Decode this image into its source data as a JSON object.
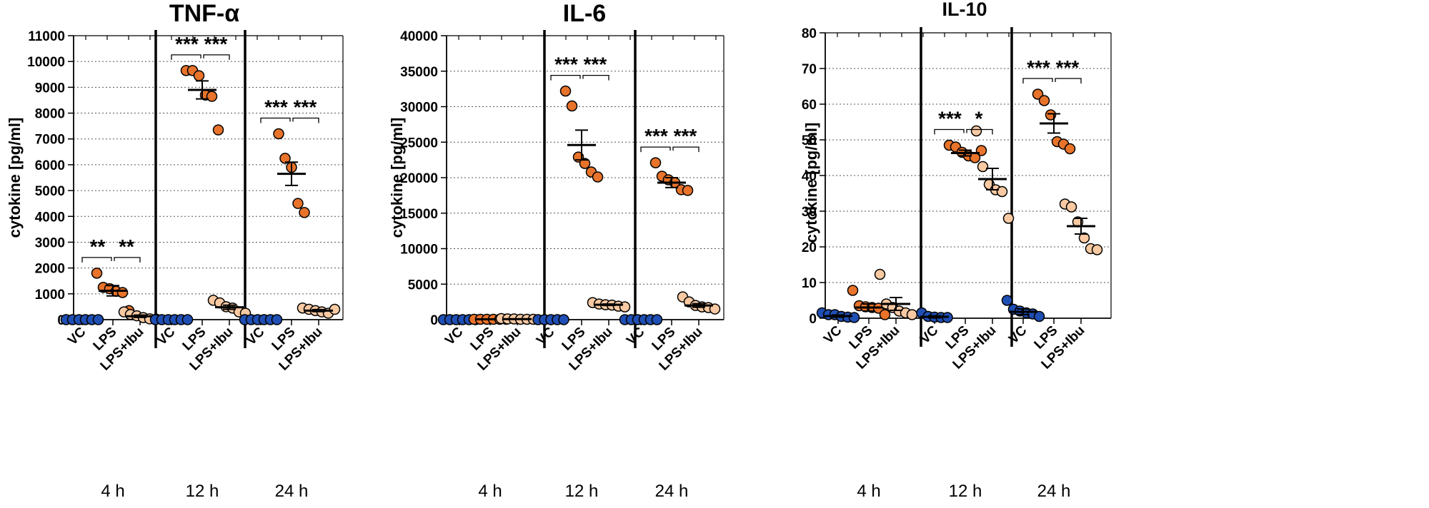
{
  "colors": {
    "VC": "#1f4fb4",
    "LPS": "#e8732a",
    "LPS+Ibu": "#f8c9a2",
    "outline": "#000000"
  },
  "chart_data": [
    {
      "type": "scatter",
      "title": "TNF-α",
      "ylabel": "cytokine [pg/ml]",
      "ylim": [
        0,
        11000
      ],
      "yticks": [
        0,
        1000,
        2000,
        3000,
        4000,
        5000,
        6000,
        7000,
        8000,
        9000,
        10000,
        11000
      ],
      "grid": true,
      "groups": [
        {
          "label": "4 h",
          "treatments": [
            {
              "name": "VC",
              "values": [
                0,
                0,
                0,
                0,
                0,
                0
              ],
              "mean": 0,
              "sem": 0
            },
            {
              "name": "LPS",
              "values": [
                1800,
                1250,
                1200,
                1100,
                1050,
                350
              ],
              "mean": 1120,
              "sem": 200
            },
            {
              "name": "LPS+Ibu",
              "values": [
                300,
                200,
                150,
                80,
                30,
                20
              ],
              "mean": 130,
              "sem": 45
            }
          ],
          "significance": [
            "**",
            "**"
          ]
        },
        {
          "label": "12 h",
          "treatments": [
            {
              "name": "VC",
              "values": [
                0,
                0,
                0,
                0,
                0,
                0
              ],
              "mean": 0,
              "sem": 0
            },
            {
              "name": "LPS",
              "values": [
                9650,
                9650,
                9450,
                8700,
                8650,
                7350
              ],
              "mean": 8900,
              "sem": 350
            },
            {
              "name": "LPS+Ibu",
              "values": [
                750,
                650,
                500,
                450,
                300,
                250
              ],
              "mean": 480,
              "sem": 80
            }
          ],
          "significance": [
            "***",
            "***"
          ]
        },
        {
          "label": "24 h",
          "treatments": [
            {
              "name": "VC",
              "values": [
                0,
                0,
                0,
                0,
                0,
                0
              ],
              "mean": 0,
              "sem": 0
            },
            {
              "name": "LPS",
              "values": [
                7200,
                6250,
                5900,
                4500,
                4150
              ],
              "mean": 5650,
              "sem": 450
            },
            {
              "name": "LPS+Ibu",
              "values": [
                450,
                400,
                350,
                300,
                250,
                400
              ],
              "mean": 350,
              "sem": 40
            }
          ],
          "significance": [
            "***",
            "***"
          ]
        }
      ]
    },
    {
      "type": "scatter",
      "title": "IL-6",
      "ylabel": "cytokine [pg/ml]",
      "ylim": [
        0,
        40000
      ],
      "yticks": [
        0,
        5000,
        10000,
        15000,
        20000,
        25000,
        30000,
        35000,
        40000
      ],
      "grid": true,
      "groups": [
        {
          "label": "4 h",
          "treatments": [
            {
              "name": "VC",
              "values": [
                0,
                0,
                0,
                0,
                0,
                0
              ],
              "mean": 0,
              "sem": 0
            },
            {
              "name": "LPS",
              "values": [
                50,
                50,
                50,
                50,
                50,
                50
              ],
              "mean": 50,
              "sem": 0
            },
            {
              "name": "LPS+Ibu",
              "values": [
                150,
                100,
                100,
                50,
                50,
                50
              ],
              "mean": 80,
              "sem": 20
            }
          ],
          "significance": []
        },
        {
          "label": "12 h",
          "treatments": [
            {
              "name": "VC",
              "values": [
                0,
                0,
                0,
                0,
                0
              ],
              "mean": 0,
              "sem": 0
            },
            {
              "name": "LPS",
              "values": [
                32200,
                30100,
                22900,
                22000,
                20800,
                20100
              ],
              "mean": 24600,
              "sem": 2100
            },
            {
              "name": "LPS+Ibu",
              "values": [
                2400,
                2200,
                2100,
                2050,
                1900,
                1800
              ],
              "mean": 2100,
              "sem": 100
            }
          ],
          "significance": [
            "***",
            "***"
          ]
        },
        {
          "label": "24 h",
          "treatments": [
            {
              "name": "VC",
              "values": [
                0,
                0,
                0,
                0,
                0,
                0
              ],
              "mean": 0,
              "sem": 0
            },
            {
              "name": "LPS",
              "values": [
                22100,
                20200,
                19700,
                19300,
                18300,
                18200
              ],
              "mean": 19300,
              "sem": 700
            },
            {
              "name": "LPS+Ibu",
              "values": [
                3200,
                2500,
                2000,
                1800,
                1700,
                1500
              ],
              "mean": 2000,
              "sem": 250
            }
          ],
          "significance": [
            "***",
            "***"
          ]
        }
      ]
    },
    {
      "type": "scatter",
      "title": "IL-10",
      "ylabel": "cytokine [pg/ml]",
      "ylim": [
        0,
        80
      ],
      "yticks": [
        0,
        10,
        20,
        30,
        40,
        50,
        60,
        70,
        80
      ],
      "grid": true,
      "groups": [
        {
          "label": "4 h",
          "treatments": [
            {
              "name": "VC",
              "values": [
                1.5,
                1.0,
                1.0,
                0.5,
                0.3,
                0.2
              ],
              "mean": 0.6,
              "sem": 0.3
            },
            {
              "name": "LPS",
              "values": [
                7.8,
                3.5,
                3.2,
                3.0,
                2.8,
                1.0
              ],
              "mean": 3.0,
              "sem": 1.0
            },
            {
              "name": "LPS+Ibu",
              "values": [
                12.3,
                4.0,
                3.0,
                2.0,
                1.5,
                1.0
              ],
              "mean": 4.0,
              "sem": 1.8
            }
          ],
          "significance": []
        },
        {
          "label": "12 h",
          "treatments": [
            {
              "name": "VC",
              "values": [
                1.5,
                0.5,
                0.3,
                0.2,
                0.2
              ],
              "mean": 0.4,
              "sem": 0.3
            },
            {
              "name": "LPS",
              "values": [
                48.5,
                48.0,
                46.5,
                45.5,
                45.0,
                47.0
              ],
              "mean": 46.3,
              "sem": 0.8
            },
            {
              "name": "LPS+Ibu",
              "values": [
                52.5,
                42.5,
                37.5,
                36.0,
                35.5,
                28.0
              ],
              "mean": 39.0,
              "sem": 3.0
            }
          ],
          "significance": [
            "***",
            "*"
          ]
        },
        {
          "label": "24 h",
          "treatments": [
            {
              "name": "VC",
              "values": [
                5.0,
                2.5,
                2.0,
                1.5,
                1.2,
                0.5
              ],
              "mean": 1.8,
              "sem": 0.8
            },
            {
              "name": "LPS",
              "values": [
                62.8,
                61.0,
                57.0,
                49.5,
                48.8,
                47.5
              ],
              "mean": 54.6,
              "sem": 2.7
            },
            {
              "name": "LPS+Ibu",
              "values": [
                32.0,
                31.2,
                27.0,
                22.5,
                19.5,
                19.2
              ],
              "mean": 25.8,
              "sem": 2.2
            }
          ],
          "significance": [
            "***",
            "***"
          ]
        }
      ]
    }
  ]
}
